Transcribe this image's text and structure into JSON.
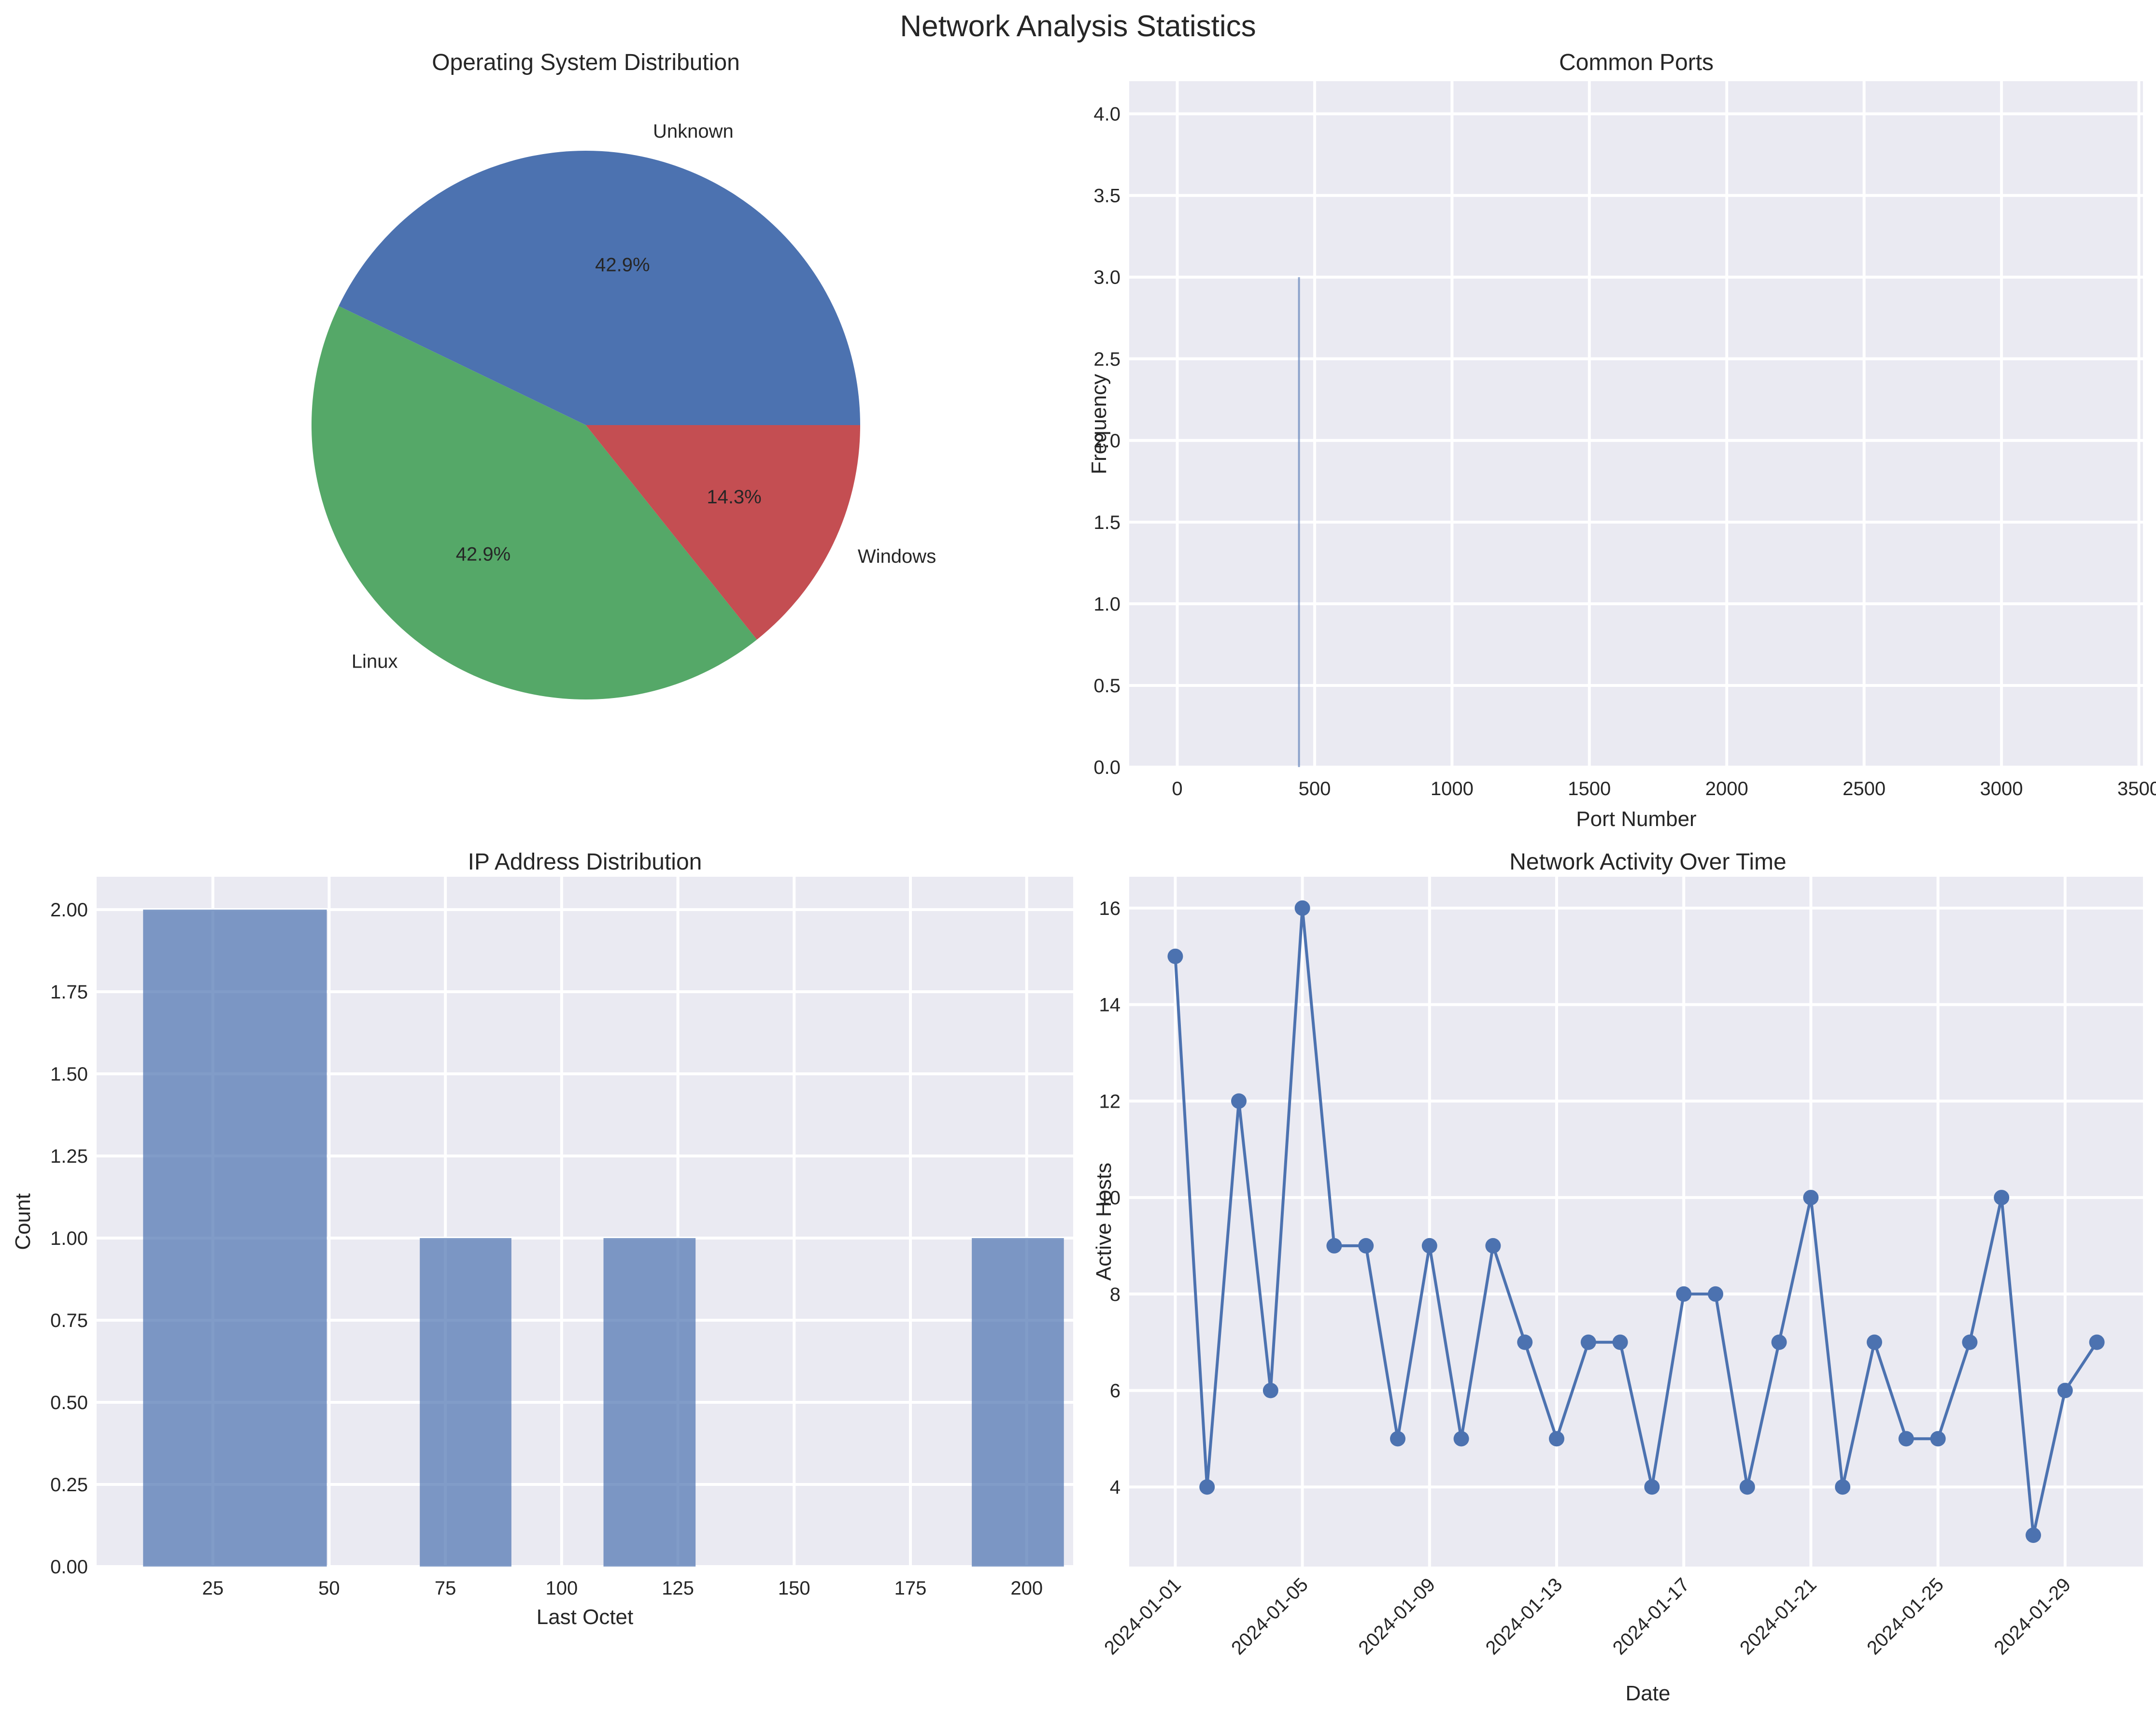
{
  "figure": {
    "title": "Network Analysis Statistics"
  },
  "chart_data": [
    {
      "id": "os",
      "type": "pie",
      "title": "Operating System Distribution",
      "labels": [
        "Unknown",
        "Linux",
        "Windows"
      ],
      "values": [
        3,
        3,
        1
      ],
      "percent_labels": [
        "42.9%",
        "42.9%",
        "14.3%"
      ],
      "colors": [
        "#4c72b0",
        "#55a868",
        "#c44e52"
      ]
    },
    {
      "id": "ports",
      "type": "bar",
      "title": "Common Ports",
      "xlabel": "Port Number",
      "ylabel": "Frequency",
      "xlim": [
        -175,
        3515
      ],
      "ylim": [
        0,
        4.2
      ],
      "xticks": [
        0,
        500,
        1000,
        1500,
        2000,
        2500,
        3000,
        3500
      ],
      "yticks": [
        "0.0",
        "0.5",
        "1.0",
        "1.5",
        "2.0",
        "2.5",
        "3.0",
        "3.5",
        "4.0"
      ],
      "x": [
        443
      ],
      "values": [
        3
      ],
      "color": "#4c72b0"
    },
    {
      "id": "ip",
      "type": "bar",
      "title": "IP Address Distribution",
      "xlabel": "Last Octet",
      "ylabel": "Count",
      "xlim": [
        0,
        210
      ],
      "ylim": [
        0,
        2.1
      ],
      "xticks": [
        25,
        50,
        75,
        100,
        125,
        150,
        175,
        200
      ],
      "yticks": [
        "0.00",
        "0.25",
        "0.50",
        "0.75",
        "1.00",
        "1.25",
        "1.50",
        "1.75",
        "2.00"
      ],
      "bins": [
        {
          "start": 10,
          "end": 49.5,
          "value": 2
        },
        {
          "start": 69.5,
          "end": 89.2,
          "value": 1
        },
        {
          "start": 109,
          "end": 128.8,
          "value": 1
        },
        {
          "start": 188.2,
          "end": 208,
          "value": 1
        }
      ],
      "color": "#4c72b0"
    },
    {
      "id": "activity",
      "type": "line",
      "title": "Network Activity Over Time",
      "xlabel": "Date",
      "ylabel": "Active Hosts",
      "ylim": [
        2.35,
        16.65
      ],
      "yticks": [
        4,
        6,
        8,
        10,
        12,
        14,
        16
      ],
      "xticks": [
        "2024-01-01",
        "2024-01-05",
        "2024-01-09",
        "2024-01-13",
        "2024-01-17",
        "2024-01-21",
        "2024-01-25",
        "2024-01-29"
      ],
      "x": [
        "2024-01-01",
        "2024-01-02",
        "2024-01-03",
        "2024-01-04",
        "2024-01-05",
        "2024-01-06",
        "2024-01-07",
        "2024-01-08",
        "2024-01-09",
        "2024-01-10",
        "2024-01-11",
        "2024-01-12",
        "2024-01-13",
        "2024-01-14",
        "2024-01-15",
        "2024-01-16",
        "2024-01-17",
        "2024-01-18",
        "2024-01-19",
        "2024-01-20",
        "2024-01-21",
        "2024-01-22",
        "2024-01-23",
        "2024-01-24",
        "2024-01-25",
        "2024-01-26",
        "2024-01-27",
        "2024-01-28",
        "2024-01-29",
        "2024-01-30"
      ],
      "values": [
        15,
        4,
        12,
        6,
        16,
        9,
        9,
        5,
        9,
        5,
        9,
        7,
        5,
        7,
        7,
        4,
        8,
        8,
        4,
        7,
        10,
        4,
        7,
        5,
        5,
        7,
        10,
        3,
        6,
        7
      ],
      "color": "#4c72b0"
    }
  ]
}
